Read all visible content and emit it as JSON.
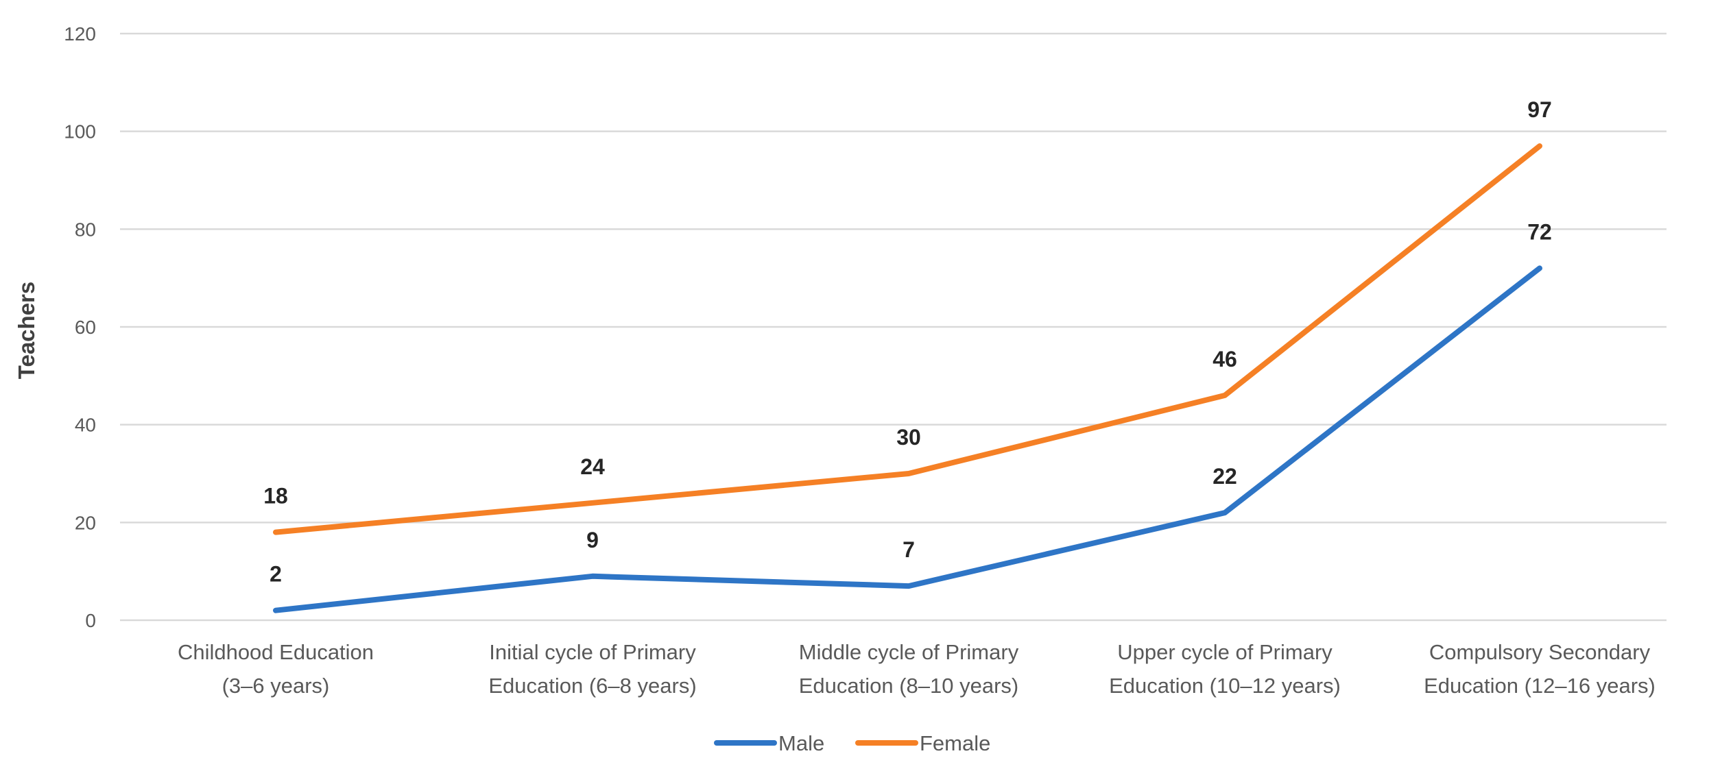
{
  "chart_data": {
    "type": "line",
    "title": "",
    "xlabel": "",
    "ylabel": "Teachers",
    "ylim": [
      0,
      120
    ],
    "yticks": [
      0,
      20,
      40,
      60,
      80,
      100,
      120
    ],
    "grid": true,
    "legend_position": "bottom-center",
    "categories": [
      [
        "Childhood Education",
        "(3–6 years)"
      ],
      [
        "Initial cycle of Primary",
        "Education (6–8 years)"
      ],
      [
        "Middle cycle of Primary",
        "Education (8–10 years)"
      ],
      [
        "Upper cycle of Primary",
        "Education (10–12 years)"
      ],
      [
        "Compulsory Secondary",
        "Education (12–16 years)"
      ]
    ],
    "series": [
      {
        "name": "Male",
        "color": "#2E75C6",
        "values": [
          2,
          9,
          7,
          22,
          72
        ]
      },
      {
        "name": "Female",
        "color": "#F58025",
        "values": [
          18,
          24,
          30,
          46,
          97
        ]
      }
    ]
  }
}
